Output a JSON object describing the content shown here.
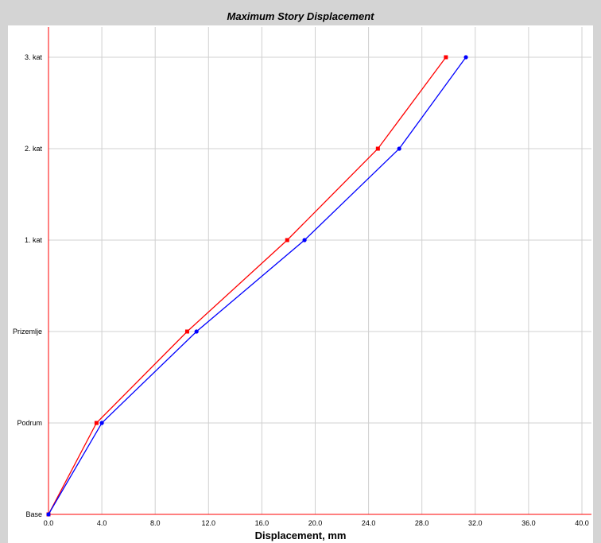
{
  "chart_data": {
    "type": "line",
    "title": "Maximum Story Displacement",
    "xlabel": "Displacement, mm",
    "ylabel": "",
    "xlim": [
      0,
      40
    ],
    "x_ticks": [
      "0.0",
      "4.0",
      "8.0",
      "12.0",
      "16.0",
      "20.0",
      "24.0",
      "28.0",
      "32.0",
      "36.0",
      "40.0"
    ],
    "categories": [
      "Base",
      "Podrum",
      "Prizemlje",
      "1. kat",
      "2. kat",
      "3. kat"
    ],
    "grid": true,
    "series": [
      {
        "color": "#ff0000",
        "marker": "square",
        "values": [
          0,
          3.6,
          10.4,
          17.9,
          24.7,
          29.8
        ]
      },
      {
        "color": "#0000ff",
        "marker": "circle",
        "values": [
          0,
          4.0,
          11.1,
          19.2,
          26.3,
          31.3
        ]
      }
    ]
  }
}
